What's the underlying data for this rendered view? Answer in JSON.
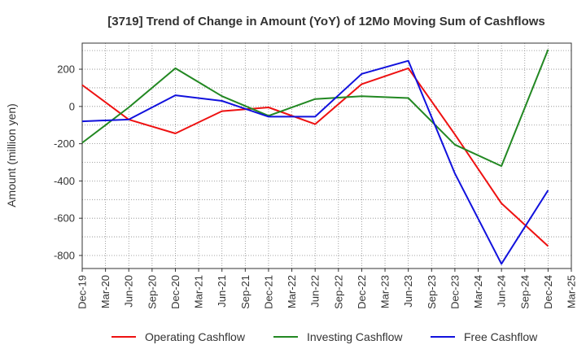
{
  "chart_data": {
    "type": "line",
    "title": "[3719]  Trend of Change in Amount (YoY) of 12Mo Moving Sum of Cashflows",
    "xlabel": "",
    "ylabel": "Amount (million yen)",
    "ylim": [
      -870,
      340
    ],
    "yticks": [
      200,
      0,
      -200,
      -400,
      -600,
      -800
    ],
    "x": [
      "Dec-19",
      "Mar-20",
      "Jun-20",
      "Sep-20",
      "Dec-20",
      "Mar-21",
      "Jun-21",
      "Sep-21",
      "Dec-21",
      "Mar-22",
      "Jun-22",
      "Sep-22",
      "Dec-22",
      "Mar-23",
      "Jun-23",
      "Sep-23",
      "Dec-23",
      "Mar-24",
      "Jun-24",
      "Sep-24",
      "Dec-24",
      "Mar-25"
    ],
    "grid": true,
    "legend_position": "bottom",
    "series": [
      {
        "name": "Operating Cashflow",
        "color": "#ee1111",
        "points": [
          [
            0,
            115
          ],
          [
            2,
            -70
          ],
          [
            4,
            -145
          ],
          [
            6,
            -25
          ],
          [
            8,
            -5
          ],
          [
            10,
            -95
          ],
          [
            12,
            120
          ],
          [
            14,
            205
          ],
          [
            16,
            -150
          ],
          [
            18,
            -520
          ],
          [
            20,
            -750
          ]
        ]
      },
      {
        "name": "Investing Cashflow",
        "color": "#228822",
        "points": [
          [
            0,
            -195
          ],
          [
            2,
            -5
          ],
          [
            4,
            205
          ],
          [
            6,
            55
          ],
          [
            8,
            -50
          ],
          [
            10,
            40
          ],
          [
            12,
            55
          ],
          [
            14,
            45
          ],
          [
            16,
            -205
          ],
          [
            18,
            -320
          ],
          [
            20,
            305
          ]
        ]
      },
      {
        "name": "Free Cashflow",
        "color": "#1111dd",
        "points": [
          [
            0,
            -80
          ],
          [
            2,
            -70
          ],
          [
            4,
            60
          ],
          [
            6,
            30
          ],
          [
            8,
            -55
          ],
          [
            10,
            -55
          ],
          [
            12,
            175
          ],
          [
            14,
            245
          ],
          [
            16,
            -360
          ],
          [
            18,
            -845
          ],
          [
            20,
            -450
          ]
        ]
      }
    ]
  }
}
